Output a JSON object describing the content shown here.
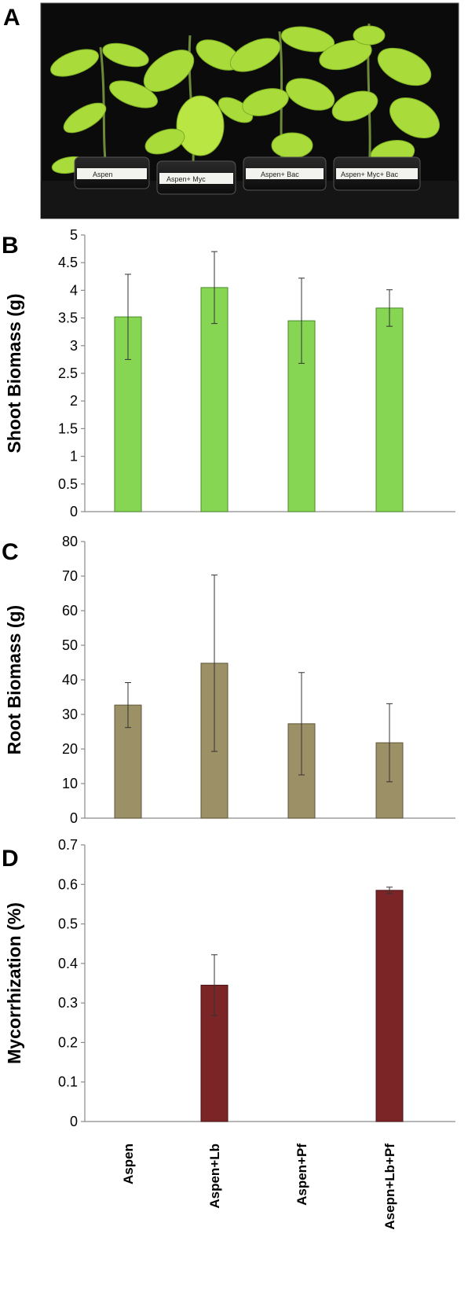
{
  "panels": {
    "a": {
      "letter": "A",
      "pot_labels": [
        "Aspen",
        "Aspen+ Myc",
        "Aspen+ Bac",
        "Aspen+ Myc+ Bac"
      ]
    },
    "b": {
      "letter": "B"
    },
    "c": {
      "letter": "C"
    },
    "d": {
      "letter": "D"
    }
  },
  "chart_data": [
    {
      "id": "b",
      "type": "bar",
      "ylabel": "Shoot Biomass (g)",
      "ylim": [
        0,
        5
      ],
      "yticks": [
        0,
        0.5,
        1,
        1.5,
        2,
        2.5,
        3,
        3.5,
        4,
        4.5,
        5
      ],
      "categories": [
        "Aspen",
        "Aspen+Lb",
        "Aspen+Pf",
        "Asepn+Lb+Pf"
      ],
      "values": [
        3.52,
        4.05,
        3.45,
        3.68
      ],
      "errors": [
        0.77,
        0.65,
        0.77,
        0.33
      ],
      "color": "#86d654",
      "edge": "#4a8a2a",
      "grid": false
    },
    {
      "id": "c",
      "type": "bar",
      "ylabel": "Root Biomass (g)",
      "ylim": [
        0,
        80
      ],
      "yticks": [
        0,
        10,
        20,
        30,
        40,
        50,
        60,
        70,
        80
      ],
      "categories": [
        "Aspen",
        "Aspen+Lb",
        "Aspen+Pf",
        "Asepn+Lb+Pf"
      ],
      "values": [
        32.7,
        44.8,
        27.3,
        21.8
      ],
      "errors": [
        6.5,
        25.5,
        14.8,
        11.3
      ],
      "color": "#9c9166",
      "edge": "#5e5638",
      "grid": false
    },
    {
      "id": "d",
      "type": "bar",
      "ylabel": "Mycorrhization (%)",
      "ylim": [
        0,
        0.7
      ],
      "yticks": [
        0,
        0.1,
        0.2,
        0.3,
        0.4,
        0.5,
        0.6,
        0.7
      ],
      "categories": [
        "Aspen",
        "Aspen+Lb",
        "Aspen+Pf",
        "Asepn+Lb+Pf"
      ],
      "values": [
        0,
        0.345,
        0,
        0.585
      ],
      "errors": [
        0,
        0.077,
        0,
        0.008
      ],
      "color": "#7b2526",
      "edge": "#4a1415",
      "grid": false
    }
  ]
}
